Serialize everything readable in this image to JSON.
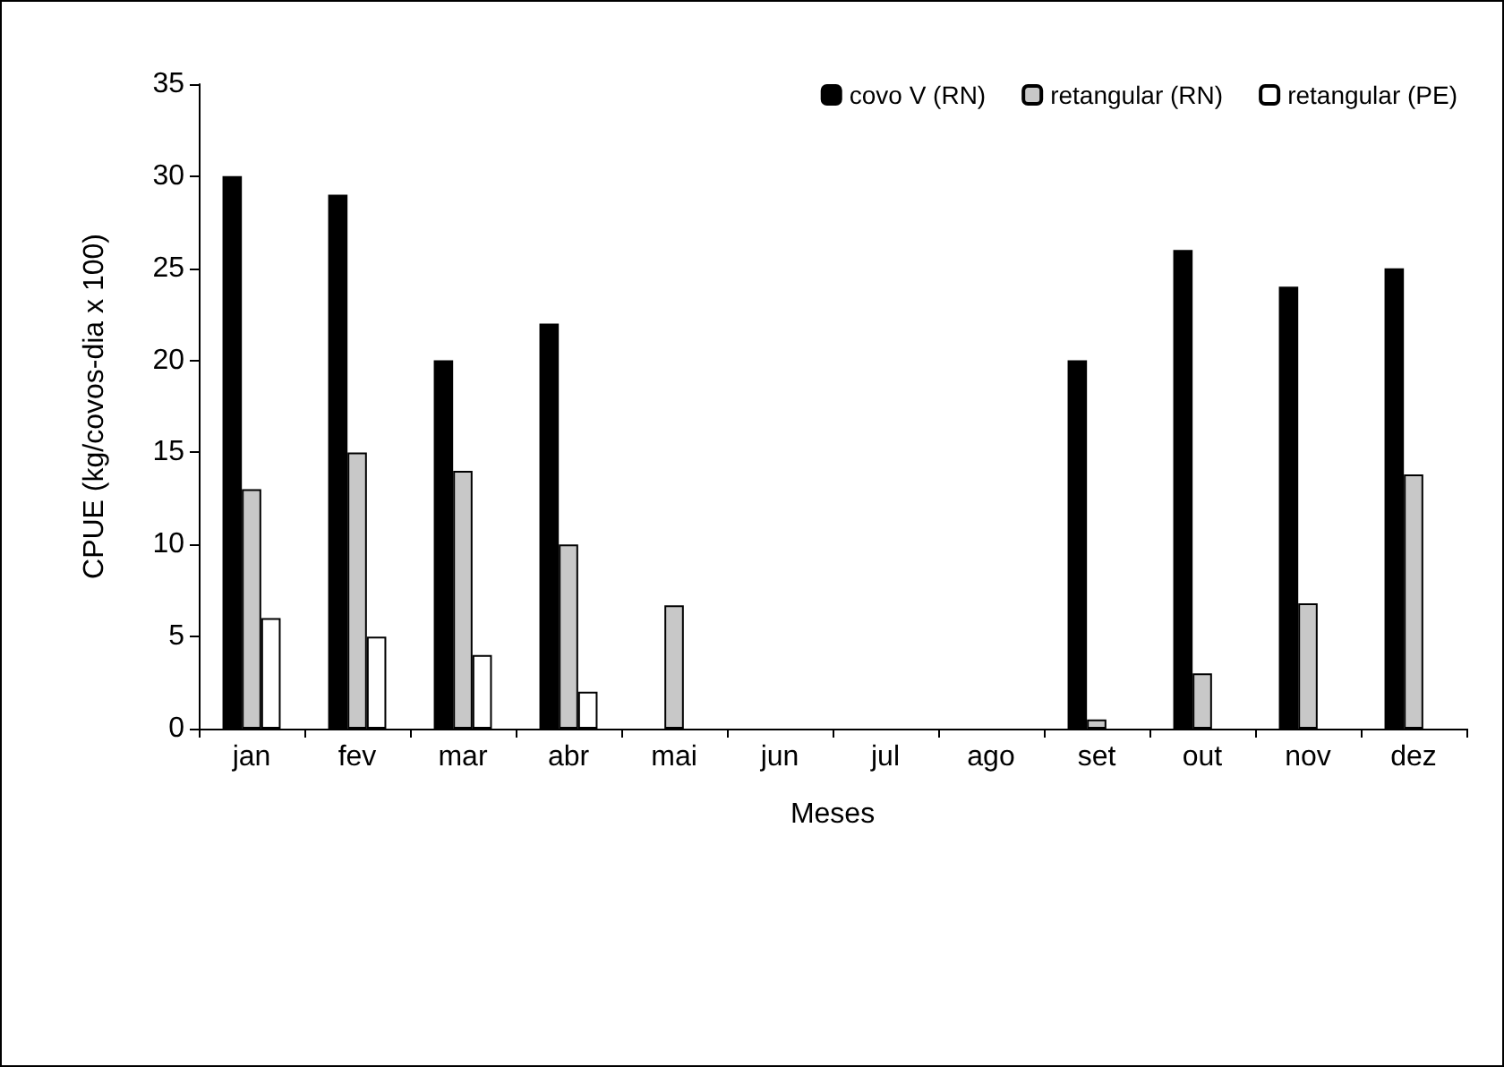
{
  "chart_data": {
    "type": "bar",
    "xlabel": "Meses",
    "ylabel": "CPUE (kg/covos-dia x 100)",
    "categories": [
      "jan",
      "fev",
      "mar",
      "abr",
      "mai",
      "jun",
      "jul",
      "ago",
      "set",
      "out",
      "nov",
      "dez"
    ],
    "series": [
      {
        "name": "covo V (RN)",
        "color": "#000000",
        "values": [
          30,
          29,
          20,
          22,
          null,
          null,
          null,
          null,
          20,
          26,
          24,
          25
        ]
      },
      {
        "name": "retangular (RN)",
        "color": "#c8c8c8",
        "values": [
          13,
          15,
          14,
          10,
          6.7,
          null,
          null,
          null,
          0.5,
          3,
          6.8,
          13.8
        ]
      },
      {
        "name": "retangular (PE)",
        "color": "#ffffff",
        "values": [
          6,
          5,
          4,
          2,
          null,
          null,
          null,
          null,
          null,
          null,
          null,
          null
        ]
      }
    ],
    "ylim": [
      0,
      35
    ],
    "yticks": [
      0,
      5,
      10,
      15,
      20,
      25,
      30,
      35
    ],
    "grid": false,
    "legend": "top right"
  }
}
